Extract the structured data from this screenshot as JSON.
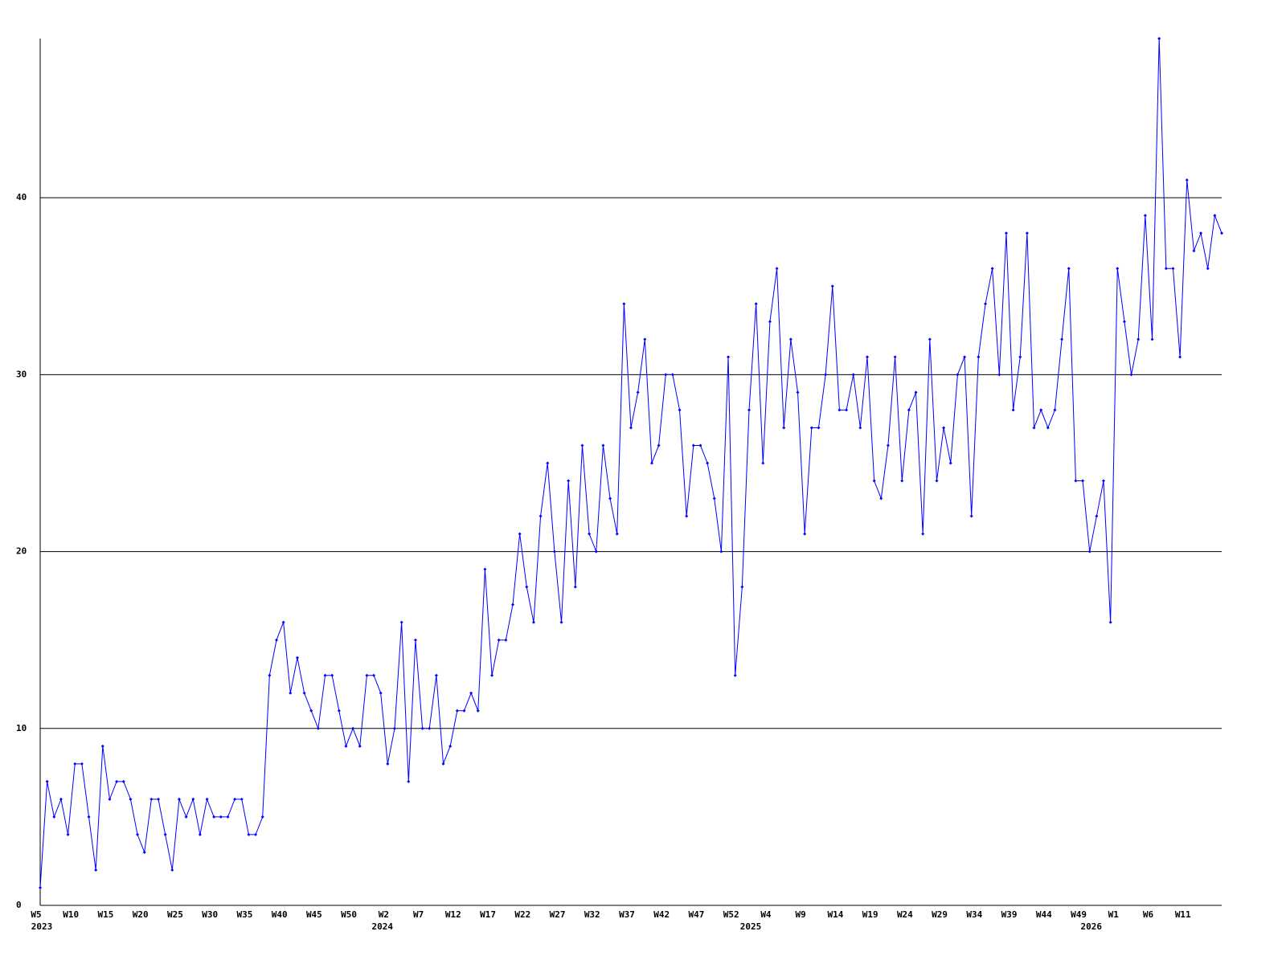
{
  "chart_data": {
    "type": "line",
    "categories": [
      "W5",
      null,
      null,
      null,
      null,
      "W10",
      null,
      null,
      null,
      null,
      "W15",
      null,
      null,
      null,
      null,
      "W20",
      null,
      null,
      null,
      null,
      "W25",
      null,
      null,
      null,
      null,
      "W30",
      null,
      null,
      null,
      null,
      "W35",
      null,
      null,
      null,
      null,
      "W40",
      null,
      null,
      null,
      null,
      "W45",
      null,
      null,
      null,
      null,
      "W50",
      null,
      null,
      null,
      null,
      "W2",
      null,
      null,
      null,
      null,
      "W7",
      null,
      null,
      null,
      null,
      "W12",
      null,
      null,
      null,
      null,
      "W17",
      null,
      null,
      null,
      null,
      "W22",
      null,
      null,
      null,
      null,
      "W27",
      null,
      null,
      null,
      null,
      "W32",
      null,
      null,
      null,
      null,
      "W37",
      null,
      null,
      null,
      null,
      "W42",
      null,
      null,
      null,
      null,
      "W47",
      null,
      null,
      null,
      null,
      "W52",
      null,
      null,
      null,
      null,
      "W4",
      null,
      null,
      null,
      null,
      "W9",
      null,
      null,
      null,
      null,
      "W14",
      null,
      null,
      null,
      null,
      "W19",
      null,
      null,
      null,
      null,
      "W24",
      null,
      null,
      null,
      null,
      "W29",
      null,
      null,
      null,
      null,
      "W34",
      null,
      null,
      null,
      null,
      "W39",
      null,
      null,
      null,
      null,
      "W44",
      null,
      null,
      null,
      null,
      "W49",
      null,
      null,
      null,
      null,
      "W1",
      null,
      null,
      null,
      null,
      "W6",
      null,
      null,
      null,
      null,
      "W11",
      null,
      null,
      null,
      null,
      null
    ],
    "category_years": [
      "2023",
      null,
      null,
      null,
      null,
      null,
      null,
      null,
      null,
      null,
      null,
      null,
      null,
      null,
      null,
      null,
      null,
      null,
      null,
      null,
      null,
      null,
      null,
      null,
      null,
      null,
      null,
      null,
      null,
      null,
      null,
      null,
      null,
      null,
      null,
      null,
      null,
      null,
      null,
      null,
      null,
      null,
      null,
      null,
      null,
      null,
      null,
      null,
      null,
      "2024",
      null,
      null,
      null,
      null,
      null,
      null,
      null,
      null,
      null,
      null,
      null,
      null,
      null,
      null,
      null,
      null,
      null,
      null,
      null,
      null,
      null,
      null,
      null,
      null,
      null,
      null,
      null,
      null,
      null,
      null,
      null,
      null,
      null,
      null,
      null,
      null,
      null,
      null,
      null,
      null,
      null,
      null,
      null,
      null,
      null,
      null,
      null,
      null,
      null,
      null,
      null,
      null,
      "2025",
      null,
      null,
      null,
      null,
      null,
      null,
      null,
      null,
      null,
      null,
      null,
      null,
      null,
      null,
      null,
      null,
      null,
      null,
      null,
      null,
      null,
      null,
      null,
      null,
      null,
      null,
      null,
      null,
      null,
      null,
      null,
      null,
      null,
      null,
      null,
      null,
      null,
      null,
      null,
      null,
      null,
      null,
      null,
      null,
      null,
      null,
      null,
      null,
      "2026",
      null,
      null,
      null,
      null,
      null,
      null,
      null,
      null,
      null,
      null,
      null,
      null,
      null,
      null,
      null
    ],
    "series": [
      {
        "color": "#0000ff",
        "values": [
          1,
          7,
          5,
          6,
          4,
          8,
          8,
          5,
          2,
          9,
          6,
          7,
          7,
          6,
          4,
          3,
          6,
          6,
          4,
          2,
          6,
          5,
          6,
          4,
          6,
          5,
          5,
          5,
          6,
          6,
          4,
          4,
          5,
          13,
          15,
          16,
          12,
          14,
          12,
          11,
          10,
          13,
          13,
          11,
          9,
          10,
          9,
          13,
          13,
          12,
          8,
          10,
          16,
          7,
          15,
          10,
          10,
          13,
          8,
          9,
          11,
          11,
          12,
          11,
          19,
          13,
          15,
          15,
          17,
          21,
          18,
          16,
          22,
          25,
          20,
          16,
          24,
          18,
          26,
          21,
          20,
          26,
          23,
          21,
          34,
          27,
          29,
          32,
          25,
          26,
          30,
          30,
          28,
          22,
          26,
          26,
          25,
          23,
          20,
          31,
          13,
          18,
          28,
          34,
          25,
          33,
          36,
          27,
          32,
          29,
          21,
          27,
          27,
          30,
          35,
          28,
          28,
          30,
          27,
          31,
          24,
          23,
          26,
          31,
          24,
          28,
          29,
          21,
          32,
          24,
          27,
          25,
          30,
          31,
          22,
          31,
          34,
          36,
          30,
          38,
          28,
          31,
          38,
          27,
          28,
          27,
          28,
          32,
          36,
          24,
          24,
          20,
          22,
          24,
          16,
          36,
          33,
          30,
          32,
          39,
          32,
          49,
          36,
          36,
          31,
          41,
          37,
          38,
          36,
          39,
          38
        ]
      }
    ],
    "ylim": [
      0,
      49
    ],
    "yticks": [
      0,
      10,
      20,
      30,
      40
    ],
    "grid": true
  }
}
